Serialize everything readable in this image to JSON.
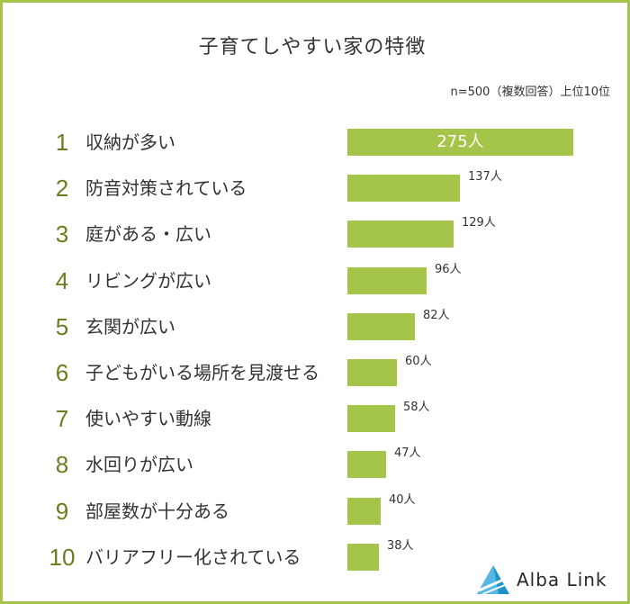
{
  "title": "子育てしやすい家の特徴",
  "note": "n=500（複数回答）上位10位",
  "logo": {
    "text": "Alba Link",
    "accent": "#1f93c9"
  },
  "colors": {
    "bar": "#a5c44a",
    "frame": "#a5c44a",
    "rank": "#6b7d1f"
  },
  "chart_data": {
    "type": "bar",
    "orientation": "horizontal",
    "unit": "人",
    "xlim": [
      0,
      275
    ],
    "categories": [
      {
        "rank": "1",
        "label": "収納が多い",
        "value": 275,
        "value_label": "275人"
      },
      {
        "rank": "2",
        "label": "防音対策されている",
        "value": 137,
        "value_label": "137人"
      },
      {
        "rank": "3",
        "label": "庭がある・広い",
        "value": 129,
        "value_label": "129人"
      },
      {
        "rank": "4",
        "label": "リビングが広い",
        "value": 96,
        "value_label": "96人"
      },
      {
        "rank": "5",
        "label": "玄関が広い",
        "value": 82,
        "value_label": "82人"
      },
      {
        "rank": "6",
        "label": "子どもがいる場所を見渡せる",
        "value": 60,
        "value_label": "60人"
      },
      {
        "rank": "7",
        "label": "使いやすい動線",
        "value": 58,
        "value_label": "58人"
      },
      {
        "rank": "8",
        "label": "水回りが広い",
        "value": 47,
        "value_label": "47人"
      },
      {
        "rank": "9",
        "label": "部屋数が十分ある",
        "value": 40,
        "value_label": "40人"
      },
      {
        "rank": "10",
        "label": "バリアフリー化されている",
        "value": 38,
        "value_label": "38人"
      }
    ]
  }
}
